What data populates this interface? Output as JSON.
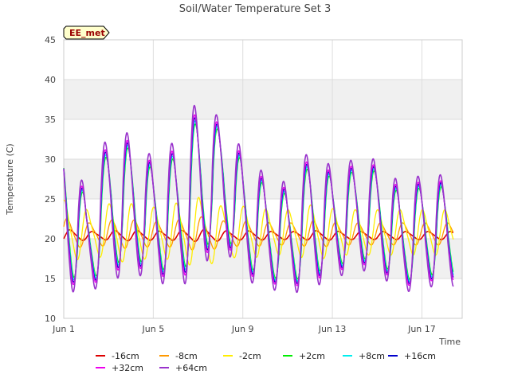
{
  "chart_data": {
    "type": "line",
    "title": "Soil/Water Temperature Set 3",
    "xlabel": "Time",
    "ylabel": "Temperature (C)",
    "badge": "EE_met",
    "xlim": [
      0,
      17.8
    ],
    "ylim": [
      10,
      45
    ],
    "yticks": [
      10,
      15,
      20,
      25,
      30,
      35,
      40,
      45
    ],
    "xticks": [
      {
        "value": 0,
        "label": "Jun 1"
      },
      {
        "value": 4,
        "label": "Jun 5"
      },
      {
        "value": 8,
        "label": "Jun 9"
      },
      {
        "value": 12,
        "label": "Jun 13"
      },
      {
        "value": 16,
        "label": "Jun 17"
      }
    ],
    "grid": true,
    "legend_position": "bottom",
    "day_highs": [
      32,
      25,
      32,
      32,
      29,
      31,
      36,
      34,
      30,
      27,
      26,
      30,
      28,
      29,
      29,
      26,
      27
    ],
    "day_lows": [
      15,
      14,
      16,
      17,
      16,
      15,
      17,
      21,
      16,
      15,
      14,
      15,
      16,
      17,
      17,
      14,
      15
    ],
    "series": [
      {
        "name": "-16cm",
        "color": "#dd0000",
        "amplitude": 0.08,
        "lag": 0.45,
        "mean_offset": 20.4,
        "width": 1.6
      },
      {
        "name": "-8cm",
        "color": "#ff9900",
        "amplitude": 0.22,
        "lag": 0.32,
        "mean_offset": 20.6,
        "width": 1.3
      },
      {
        "name": "-2cm",
        "color": "#ffee00",
        "amplitude": 0.45,
        "lag": 0.2,
        "mean_offset": 20.8,
        "width": 1.3
      },
      {
        "name": "+2cm",
        "color": "#00ee00",
        "amplitude": 0.88,
        "lag": 0.04,
        "mean_offset": 0,
        "width": 1.3
      },
      {
        "name": "+8cm",
        "color": "#00eeee",
        "amplitude": 0.92,
        "lag": 0.03,
        "mean_offset": 0,
        "width": 1.3
      },
      {
        "name": "+16cm",
        "color": "#0000cc",
        "amplitude": 0.96,
        "lag": 0.02,
        "mean_offset": 0,
        "width": 1.3
      },
      {
        "name": "+32cm",
        "color": "#ee00ee",
        "amplitude": 1.0,
        "lag": 0.01,
        "mean_offset": 0,
        "width": 1.3
      },
      {
        "name": "+64cm",
        "color": "#9933cc",
        "amplitude": 1.12,
        "lag": 0.0,
        "mean_offset": 0,
        "width": 1.6
      }
    ],
    "colors": {
      "band": "#f0f0f0",
      "grid": "#dddddd",
      "axis": "#cccccc",
      "badge_fill": "#ffffcc",
      "badge_text": "#990000"
    }
  }
}
